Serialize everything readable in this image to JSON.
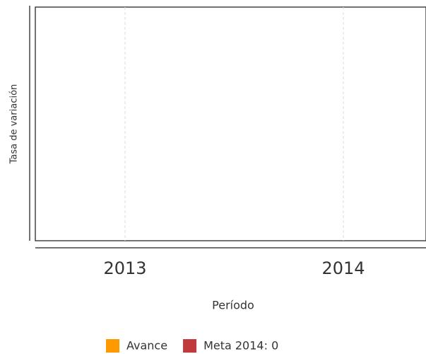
{
  "chart_data": {
    "type": "line",
    "categories": [
      "2013",
      "2014"
    ],
    "x_label": "Período",
    "y_label": "Tasa de variación",
    "series": [
      {
        "name": "Avance",
        "color": "#ff9900",
        "values": [
          null,
          null
        ]
      },
      {
        "name": "Meta 2014: 0",
        "color": "#c0393b",
        "values": [
          null,
          null
        ]
      }
    ],
    "grid": true
  }
}
